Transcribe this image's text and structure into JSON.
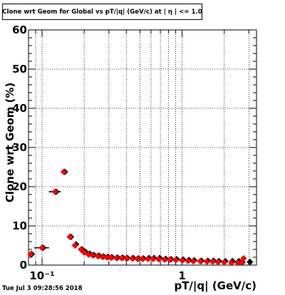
{
  "title": "Clone wrt Geom for Global vs pT/|q| (GeV/c) at | η | <= 1.0",
  "timestamp": "Tue Jul  3 09:28:56 2018",
  "chart_data": {
    "type": "scatter",
    "title": "Clone wrt Geom for Global vs pT/|q| (GeV/c) at | η | <= 1.0",
    "xlabel": "pT/|q| (GeV/c)",
    "ylabel": "Clone wrt Geom (%)",
    "xscale": "log",
    "xlim": [
      0.08,
      3.4
    ],
    "ylim": [
      0,
      60
    ],
    "yticks": [
      0,
      10,
      20,
      30,
      40,
      50,
      60
    ],
    "yticklabels": [
      "0",
      "10",
      "20",
      "30",
      "40",
      "50",
      "60"
    ],
    "xticks": [
      0.1,
      1
    ],
    "xticklabels": [
      "10⁻¹",
      "1"
    ],
    "grid": true,
    "colors": {
      "reference": "#000000",
      "current": "#ff0000"
    },
    "series": [
      {
        "marker": "diamond",
        "color": "#000000",
        "points": [
          {
            "x": 0.083,
            "y": 2.8
          },
          {
            "x": 0.1,
            "y": 4.4,
            "xerr": 0.012
          },
          {
            "x": 0.124,
            "y": 18.7,
            "xerr": 0.012
          },
          {
            "x": 0.143,
            "y": 23.8
          },
          {
            "x": 0.158,
            "y": 7.2
          },
          {
            "x": 0.172,
            "y": 5.3
          },
          {
            "x": 0.19,
            "y": 4.0
          },
          {
            "x": 0.2,
            "y": 3.4
          },
          {
            "x": 0.215,
            "y": 2.9
          },
          {
            "x": 0.23,
            "y": 2.6
          },
          {
            "x": 0.25,
            "y": 2.4
          },
          {
            "x": 0.27,
            "y": 2.2
          },
          {
            "x": 0.29,
            "y": 2.1
          },
          {
            "x": 0.31,
            "y": 2.0
          },
          {
            "x": 0.34,
            "y": 1.9
          },
          {
            "x": 0.37,
            "y": 1.9
          },
          {
            "x": 0.4,
            "y": 1.8
          },
          {
            "x": 0.44,
            "y": 1.8
          },
          {
            "x": 0.48,
            "y": 1.7
          },
          {
            "x": 0.52,
            "y": 1.7
          },
          {
            "x": 0.57,
            "y": 1.8
          },
          {
            "x": 0.62,
            "y": 1.8
          },
          {
            "x": 0.68,
            "y": 1.8
          },
          {
            "x": 0.75,
            "y": 1.6
          },
          {
            "x": 0.82,
            "y": 1.5
          },
          {
            "x": 0.9,
            "y": 1.5
          },
          {
            "x": 1.0,
            "y": 1.4
          },
          {
            "x": 1.1,
            "y": 1.3
          },
          {
            "x": 1.2,
            "y": 1.2
          },
          {
            "x": 1.35,
            "y": 1.1
          },
          {
            "x": 1.5,
            "y": 1.1
          },
          {
            "x": 1.65,
            "y": 1.1
          },
          {
            "x": 1.8,
            "y": 1.0
          },
          {
            "x": 2.0,
            "y": 1.0
          },
          {
            "x": 2.25,
            "y": 1.0
          },
          {
            "x": 2.5,
            "y": 1.0
          },
          {
            "x": 2.65,
            "y": 0.7
          },
          {
            "x": 3.0,
            "y": 0.8
          }
        ]
      },
      {
        "marker": "diamond",
        "color": "#ff0000",
        "points": [
          {
            "x": 0.083,
            "y": 2.8
          },
          {
            "x": 0.1,
            "y": 4.4,
            "xerr": 0.012
          },
          {
            "x": 0.124,
            "y": 18.7,
            "xerr": 0.012
          },
          {
            "x": 0.143,
            "y": 23.8
          },
          {
            "x": 0.158,
            "y": 7.2
          },
          {
            "x": 0.172,
            "y": 5.0
          },
          {
            "x": 0.19,
            "y": 4.0
          },
          {
            "x": 0.2,
            "y": 3.2
          },
          {
            "x": 0.215,
            "y": 2.7
          },
          {
            "x": 0.23,
            "y": 2.5
          },
          {
            "x": 0.25,
            "y": 2.3
          },
          {
            "x": 0.27,
            "y": 2.1
          },
          {
            "x": 0.29,
            "y": 2.0
          },
          {
            "x": 0.31,
            "y": 1.9
          },
          {
            "x": 0.34,
            "y": 1.8
          },
          {
            "x": 0.37,
            "y": 1.8
          },
          {
            "x": 0.4,
            "y": 1.7
          },
          {
            "x": 0.44,
            "y": 1.7
          },
          {
            "x": 0.48,
            "y": 1.6
          },
          {
            "x": 0.52,
            "y": 1.6
          },
          {
            "x": 0.57,
            "y": 1.6
          },
          {
            "x": 0.62,
            "y": 1.6
          },
          {
            "x": 0.68,
            "y": 1.5
          },
          {
            "x": 0.75,
            "y": 1.4
          },
          {
            "x": 0.82,
            "y": 1.4
          },
          {
            "x": 0.9,
            "y": 1.3
          },
          {
            "x": 1.0,
            "y": 1.2
          },
          {
            "x": 1.1,
            "y": 1.1
          },
          {
            "x": 1.2,
            "y": 1.0
          },
          {
            "x": 1.35,
            "y": 1.0
          },
          {
            "x": 1.5,
            "y": 0.9
          },
          {
            "x": 1.65,
            "y": 0.9
          },
          {
            "x": 1.8,
            "y": 0.8
          },
          {
            "x": 2.0,
            "y": 0.7
          },
          {
            "x": 2.25,
            "y": 0.6
          },
          {
            "x": 2.5,
            "y": 0.6
          },
          {
            "x": 2.65,
            "y": 0.6
          },
          {
            "x": 2.75,
            "y": 1.7
          }
        ]
      }
    ]
  }
}
